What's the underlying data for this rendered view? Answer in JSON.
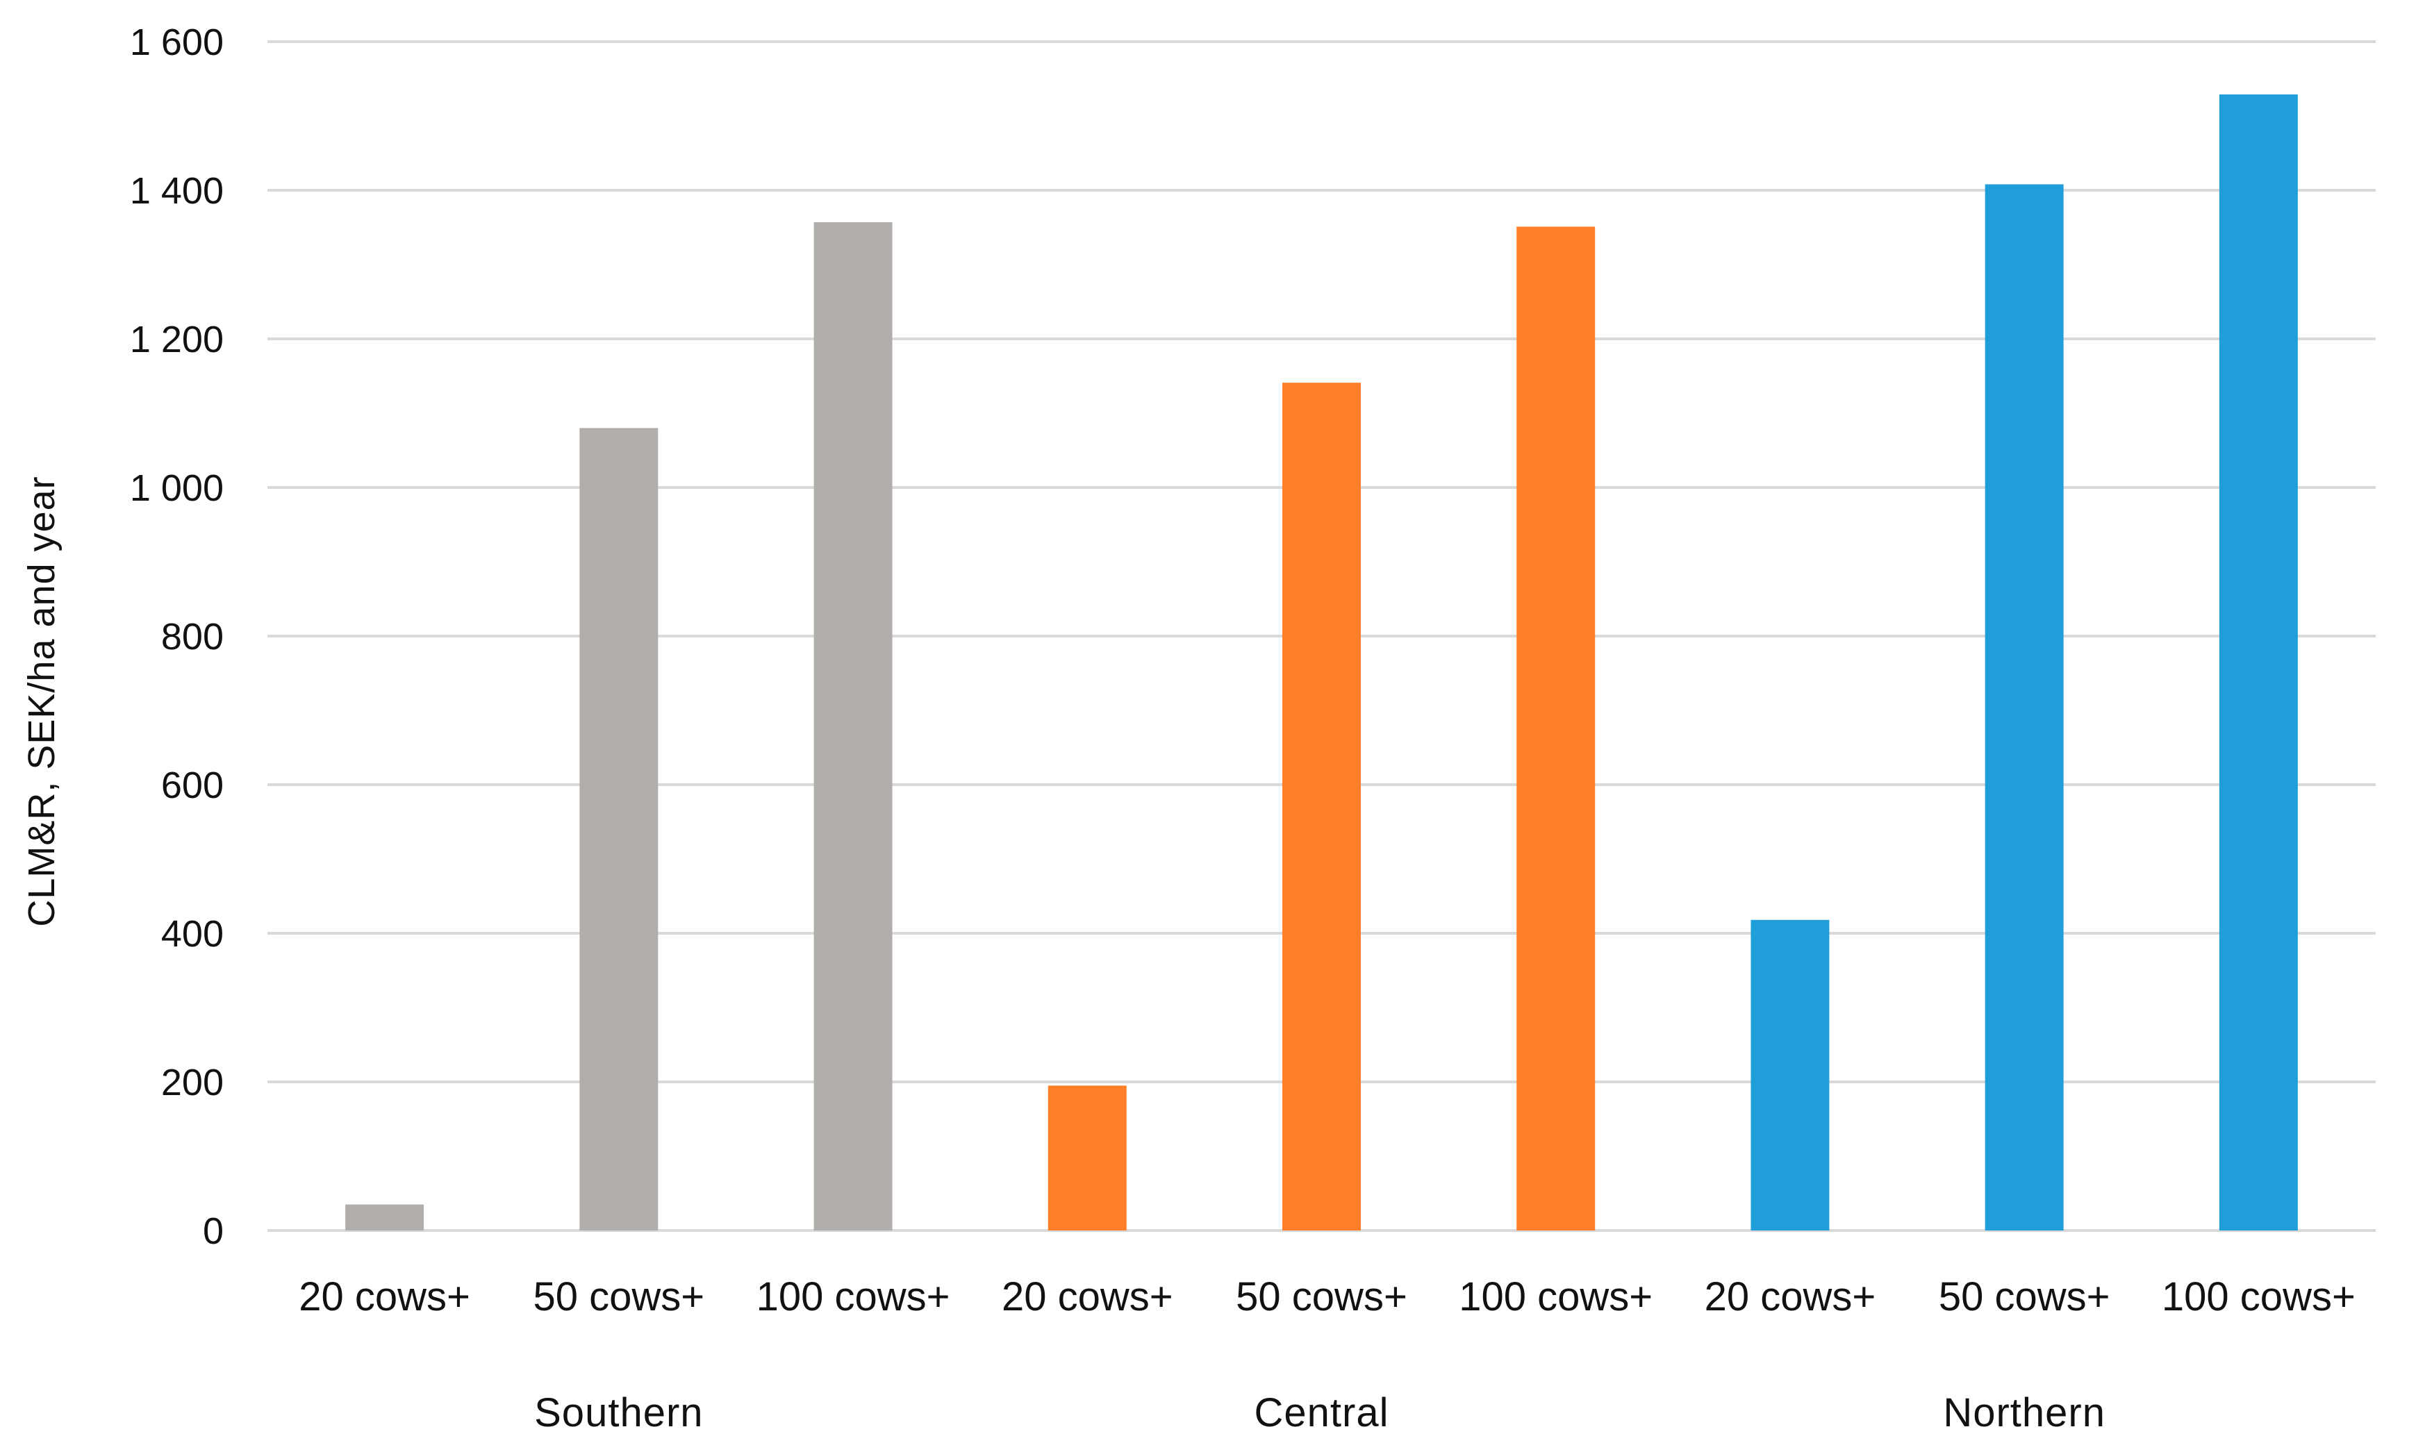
{
  "chart_data": {
    "type": "bar",
    "title": "",
    "xlabel": "",
    "ylabel": "CLM&R, SEK/ha and year",
    "ylim": [
      0,
      1600
    ],
    "yticks": [
      0,
      200,
      400,
      600,
      800,
      1000,
      1200,
      1400,
      1600
    ],
    "ytick_labels": [
      "0",
      "200",
      "400",
      "600",
      "800",
      "1 000",
      "1 200",
      "1 400",
      "1 600"
    ],
    "grid": true,
    "legend": "none",
    "groups": [
      {
        "name": "Southern",
        "color": "#b0adab",
        "categories": [
          "20 cows+",
          "50 cows+",
          "100 cows+"
        ],
        "values": [
          35,
          1080,
          1357
        ]
      },
      {
        "name": "Central",
        "color": "#fe7f27",
        "categories": [
          "20 cows+",
          "50 cows+",
          "100 cows+"
        ],
        "values": [
          195,
          1141,
          1351
        ]
      },
      {
        "name": "Northern",
        "color": "#1f9ed9",
        "categories": [
          "20 cows+",
          "50 cows+",
          "100 cows+"
        ],
        "values": [
          418,
          1408,
          1529
        ]
      }
    ]
  }
}
